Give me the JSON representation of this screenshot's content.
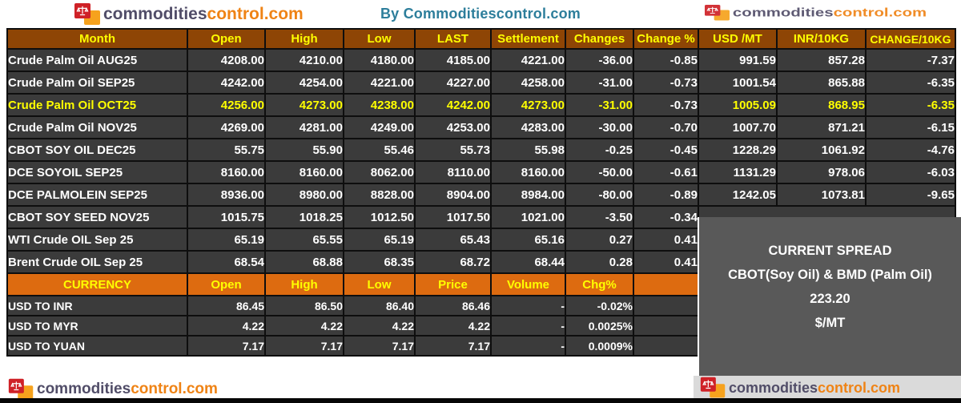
{
  "page": {
    "by_line": "By Commoditiescontrol.com"
  },
  "logo": {
    "text_dark": "commodities",
    "text_orange": "control.com"
  },
  "colors": {
    "header_brown": "#8e4505",
    "currency_orange": "#dd6b10",
    "row_dark": "#3b3b3b",
    "highlight_yellow": "#ffff00",
    "byline_teal": "#2d7e9b",
    "spread_box_gray": "#595959",
    "logo_orange": "#ef8315",
    "logo_dark": "#514d68"
  },
  "futures_table": {
    "headers": [
      "Month",
      "Open",
      "High",
      "Low",
      "LAST",
      "Settlement",
      "Changes",
      "Change %",
      "USD /MT",
      "INR/10KG",
      "CHANGE/10KG"
    ],
    "rows": [
      {
        "month": "Crude Palm Oil AUG25",
        "open": "4208.00",
        "high": "4210.00",
        "low": "4180.00",
        "last": "4185.00",
        "settlement": "4221.00",
        "changes": "-36.00",
        "change_pct": "-0.85",
        "usd_mt": "991.59",
        "inr_10kg": "857.28",
        "change_10kg": "-7.37",
        "highlight": false
      },
      {
        "month": "Crude Palm Oil SEP25",
        "open": "4242.00",
        "high": "4254.00",
        "low": "4221.00",
        "last": "4227.00",
        "settlement": "4258.00",
        "changes": "-31.00",
        "change_pct": "-0.73",
        "usd_mt": "1001.54",
        "inr_10kg": "865.88",
        "change_10kg": "-6.35",
        "highlight": false
      },
      {
        "month": "Crude Palm Oil OCT25",
        "open": "4256.00",
        "high": "4273.00",
        "low": "4238.00",
        "last": "4242.00",
        "settlement": "4273.00",
        "changes": "-31.00",
        "change_pct": "-0.73",
        "usd_mt": "1005.09",
        "inr_10kg": "868.95",
        "change_10kg": "-6.35",
        "highlight": true
      },
      {
        "month": "Crude Palm Oil NOV25",
        "open": "4269.00",
        "high": "4281.00",
        "low": "4249.00",
        "last": "4253.00",
        "settlement": "4283.00",
        "changes": "-30.00",
        "change_pct": "-0.70",
        "usd_mt": "1007.70",
        "inr_10kg": "871.21",
        "change_10kg": "-6.15",
        "highlight": false
      },
      {
        "month": "CBOT SOY OIL DEC25",
        "open": "55.75",
        "high": "55.90",
        "low": "55.46",
        "last": "55.73",
        "settlement": "55.98",
        "changes": "-0.25",
        "change_pct": "-0.45",
        "usd_mt": "1228.29",
        "inr_10kg": "1061.92",
        "change_10kg": "-4.76",
        "highlight": false
      },
      {
        "month": "DCE SOYOIL SEP25",
        "open": "8160.00",
        "high": "8160.00",
        "low": "8062.00",
        "last": "8110.00",
        "settlement": "8160.00",
        "changes": "-50.00",
        "change_pct": "-0.61",
        "usd_mt": "1131.29",
        "inr_10kg": "978.06",
        "change_10kg": "-6.03",
        "highlight": false
      },
      {
        "month": "DCE PALMOLEIN SEP25",
        "open": "8936.00",
        "high": "8980.00",
        "low": "8828.00",
        "last": "8904.00",
        "settlement": "8984.00",
        "changes": "-80.00",
        "change_pct": "-0.89",
        "usd_mt": "1242.05",
        "inr_10kg": "1073.81",
        "change_10kg": "-9.65",
        "highlight": false
      },
      {
        "month": "CBOT SOY SEED NOV25",
        "open": "1015.75",
        "high": "1018.25",
        "low": "1012.50",
        "last": "1017.50",
        "settlement": "1021.00",
        "changes": "-3.50",
        "change_pct": "-0.34",
        "usd_mt": null,
        "inr_10kg": null,
        "change_10kg": null,
        "highlight": false
      },
      {
        "month": "WTI Crude OIL Sep 25",
        "open": "65.19",
        "high": "65.55",
        "low": "65.19",
        "last": "65.43",
        "settlement": "65.16",
        "changes": "0.27",
        "change_pct": "0.41",
        "usd_mt": null,
        "inr_10kg": null,
        "change_10kg": null,
        "highlight": false
      },
      {
        "month": "Brent Crude OIL Sep 25",
        "open": "68.54",
        "high": "68.88",
        "low": "68.35",
        "last": "68.72",
        "settlement": "68.44",
        "changes": "0.28",
        "change_pct": "0.41",
        "usd_mt": null,
        "inr_10kg": null,
        "change_10kg": null,
        "highlight": false
      }
    ]
  },
  "currency_table": {
    "headers": [
      "CURRENCY",
      "Open",
      "High",
      "Low",
      "Price",
      "Volume",
      "Chg%"
    ],
    "rows": [
      {
        "name": "USD TO INR",
        "open": "86.45",
        "high": "86.50",
        "low": "86.40",
        "price": "86.46",
        "volume": "-",
        "chg_pct": "-0.02%"
      },
      {
        "name": "USD TO MYR",
        "open": "4.22",
        "high": "4.22",
        "low": "4.22",
        "price": "4.22",
        "volume": "-",
        "chg_pct": "0.0025%"
      },
      {
        "name": "USD TO YUAN",
        "open": "7.17",
        "high": "7.17",
        "low": "7.17",
        "price": "7.17",
        "volume": "-",
        "chg_pct": "0.0009%"
      }
    ]
  },
  "spread_box": {
    "line1": "CURRENT SPREAD",
    "line2": "CBOT(Soy Oil) & BMD (Palm Oil)",
    "line3": "223.20",
    "line4": "$/MT"
  }
}
